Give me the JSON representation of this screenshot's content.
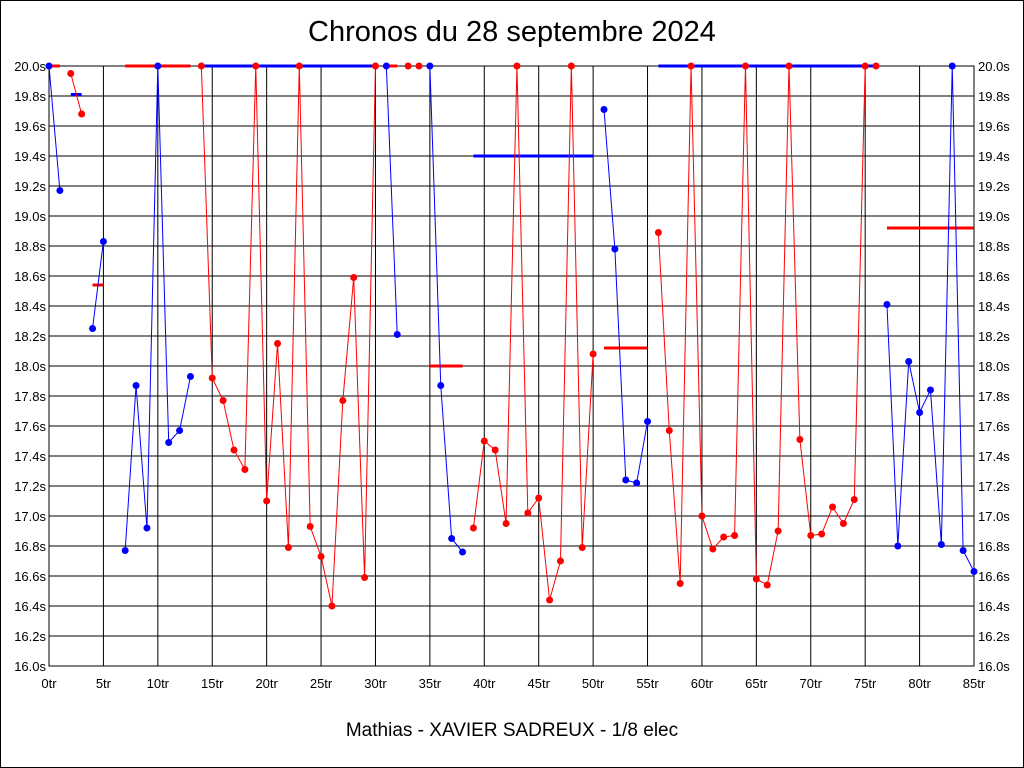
{
  "chart_data": {
    "type": "line",
    "title": "Chronos du 28 septembre 2024",
    "subtitle": "Mathias - XAVIER SADREUX - 1/8 elec",
    "xlim": [
      0,
      85
    ],
    "ylim": [
      16.0,
      20.0
    ],
    "grid": true,
    "x_ticks": [
      "0tr",
      "5tr",
      "10tr",
      "15tr",
      "20tr",
      "25tr",
      "30tr",
      "35tr",
      "40tr",
      "45tr",
      "50tr",
      "55tr",
      "60tr",
      "65tr",
      "70tr",
      "75tr",
      "80tr",
      "85tr"
    ],
    "x_tick_values": [
      0,
      5,
      10,
      15,
      20,
      25,
      30,
      35,
      40,
      45,
      50,
      55,
      60,
      65,
      70,
      75,
      80,
      85
    ],
    "y_ticks": [
      "16.0s",
      "16.2s",
      "16.4s",
      "16.6s",
      "16.8s",
      "17.0s",
      "17.2s",
      "17.4s",
      "17.6s",
      "17.8s",
      "18.0s",
      "18.2s",
      "18.4s",
      "18.6s",
      "18.8s",
      "19.0s",
      "19.2s",
      "19.4s",
      "19.6s",
      "19.8s",
      "20.0s"
    ],
    "y_tick_values": [
      16.0,
      16.2,
      16.4,
      16.6,
      16.8,
      17.0,
      17.2,
      17.4,
      17.6,
      17.8,
      18.0,
      18.2,
      18.4,
      18.6,
      18.8,
      19.0,
      19.2,
      19.4,
      19.6,
      19.8,
      20.0
    ],
    "colors": {
      "blue": "#0000ff",
      "red": "#ff0000",
      "grid": "#000000"
    },
    "segments": [
      {
        "color": "blue",
        "points": [
          [
            0,
            20.0
          ],
          [
            1,
            19.17
          ]
        ]
      },
      {
        "color": "red",
        "points": [
          [
            2,
            19.95
          ],
          [
            3,
            19.68
          ]
        ]
      },
      {
        "color": "blue",
        "points": [
          [
            4,
            18.25
          ],
          [
            5,
            18.83
          ]
        ]
      },
      {
        "color": "blue",
        "points": [
          [
            7,
            16.77
          ],
          [
            8,
            17.87
          ],
          [
            9,
            16.92
          ],
          [
            10,
            20.0
          ],
          [
            11,
            17.49
          ],
          [
            12,
            17.57
          ],
          [
            13,
            17.93
          ]
        ]
      },
      {
        "color": "red",
        "points": [
          [
            14,
            20.0
          ],
          [
            15,
            17.92
          ],
          [
            16,
            17.77
          ],
          [
            17,
            17.44
          ],
          [
            18,
            17.31
          ],
          [
            19,
            20.0
          ],
          [
            20,
            17.1
          ],
          [
            21,
            18.15
          ],
          [
            22,
            16.79
          ],
          [
            23,
            20.0
          ],
          [
            24,
            16.93
          ],
          [
            25,
            16.73
          ],
          [
            26,
            16.4
          ],
          [
            27,
            17.77
          ],
          [
            28,
            18.59
          ],
          [
            29,
            16.59
          ],
          [
            30,
            20.0
          ]
        ]
      },
      {
        "color": "blue",
        "points": [
          [
            31,
            20.0
          ],
          [
            32,
            18.21
          ]
        ]
      },
      {
        "color": "red",
        "points": [
          [
            33,
            20.0
          ]
        ]
      },
      {
        "color": "red",
        "points": [
          [
            34,
            20.0
          ]
        ]
      },
      {
        "color": "blue",
        "points": [
          [
            35,
            20.0
          ],
          [
            36,
            17.87
          ],
          [
            37,
            16.85
          ],
          [
            38,
            16.76
          ]
        ]
      },
      {
        "color": "red",
        "points": [
          [
            39,
            16.92
          ],
          [
            40,
            17.5
          ],
          [
            41,
            17.44
          ],
          [
            42,
            16.95
          ],
          [
            43,
            20.0
          ],
          [
            44,
            17.02
          ],
          [
            45,
            17.12
          ],
          [
            46,
            16.44
          ],
          [
            47,
            16.7
          ],
          [
            48,
            20.0
          ],
          [
            49,
            16.79
          ],
          [
            50,
            18.08
          ]
        ]
      },
      {
        "color": "blue",
        "points": [
          [
            51,
            19.71
          ],
          [
            52,
            18.78
          ],
          [
            53,
            17.24
          ],
          [
            54,
            17.22
          ],
          [
            55,
            17.63
          ]
        ]
      },
      {
        "color": "red",
        "points": [
          [
            56,
            18.89
          ],
          [
            57,
            17.57
          ],
          [
            58,
            16.55
          ],
          [
            59,
            20.0
          ],
          [
            60,
            17.0
          ],
          [
            61,
            16.78
          ],
          [
            62,
            16.86
          ],
          [
            63,
            16.87
          ],
          [
            64,
            20.0
          ],
          [
            65,
            16.58
          ],
          [
            66,
            16.54
          ],
          [
            67,
            16.9
          ],
          [
            68,
            20.0
          ],
          [
            69,
            17.51
          ],
          [
            70,
            16.87
          ],
          [
            71,
            16.88
          ],
          [
            72,
            17.06
          ],
          [
            73,
            16.95
          ],
          [
            74,
            17.11
          ],
          [
            75,
            20.0
          ]
        ]
      },
      {
        "color": "red",
        "points": [
          [
            76,
            20.0
          ]
        ]
      },
      {
        "color": "blue",
        "points": [
          [
            77,
            18.41
          ],
          [
            78,
            16.8
          ],
          [
            79,
            18.03
          ],
          [
            80,
            17.69
          ],
          [
            81,
            17.84
          ],
          [
            82,
            16.81
          ],
          [
            83,
            20.0
          ],
          [
            84,
            16.77
          ],
          [
            85,
            16.63
          ]
        ]
      }
    ],
    "reference_lines": [
      {
        "color": "red",
        "x": [
          0,
          1
        ],
        "y": 20.0
      },
      {
        "color": "blue",
        "x": [
          2,
          3
        ],
        "y": 19.81
      },
      {
        "color": "red",
        "x": [
          4,
          5
        ],
        "y": 18.54
      },
      {
        "color": "red",
        "x": [
          7,
          13
        ],
        "y": 20.0
      },
      {
        "color": "blue",
        "x": [
          14,
          30
        ],
        "y": 20.0
      },
      {
        "color": "red",
        "x": [
          31,
          32
        ],
        "y": 20.0
      },
      {
        "color": "red",
        "x": [
          35,
          38
        ],
        "y": 18.0
      },
      {
        "color": "blue",
        "x": [
          39,
          50
        ],
        "y": 19.4
      },
      {
        "color": "red",
        "x": [
          51,
          55
        ],
        "y": 18.12
      },
      {
        "color": "blue",
        "x": [
          56,
          76
        ],
        "y": 20.0
      },
      {
        "color": "red",
        "x": [
          77,
          85
        ],
        "y": 18.92
      }
    ]
  }
}
